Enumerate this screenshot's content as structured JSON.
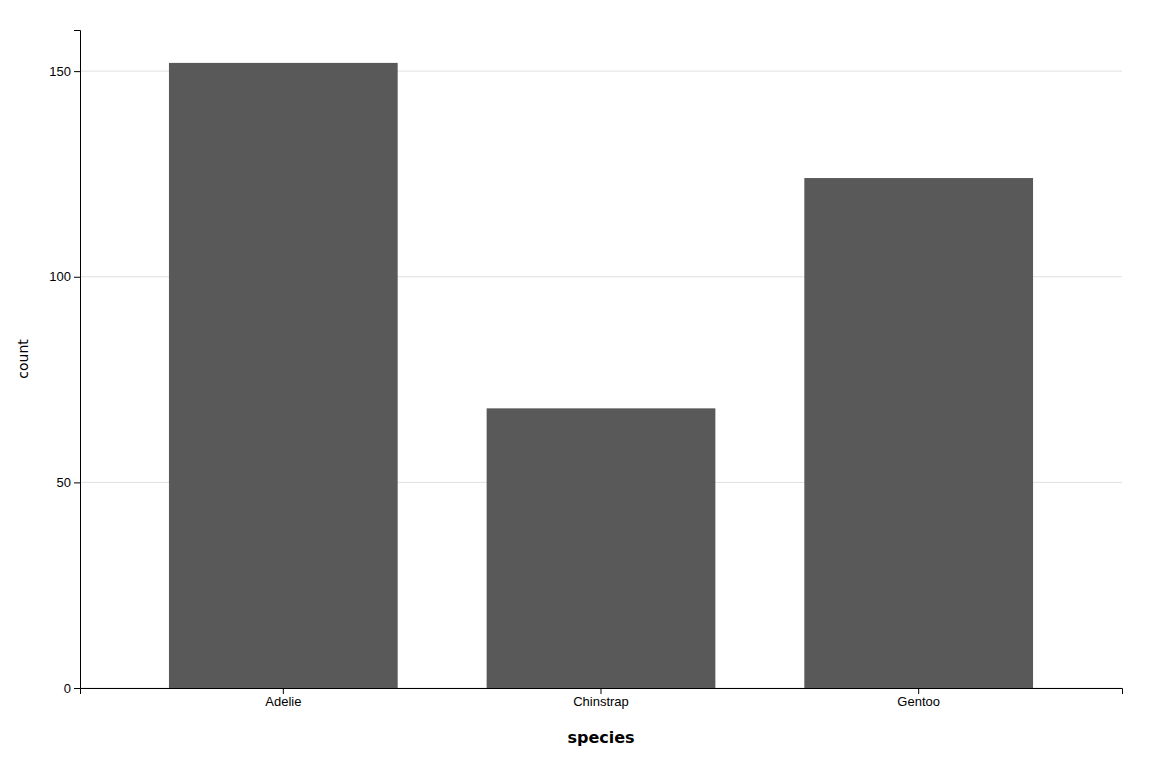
{
  "chart_data": {
    "type": "bar",
    "categories": [
      "Adelie",
      "Chinstrap",
      "Gentoo"
    ],
    "values": [
      152,
      68,
      124
    ],
    "color": "#595959",
    "xlabel": "species",
    "ylabel": "count",
    "ylim": [
      0,
      160
    ],
    "yticks": [
      0,
      50,
      100,
      150
    ],
    "grid": true
  }
}
